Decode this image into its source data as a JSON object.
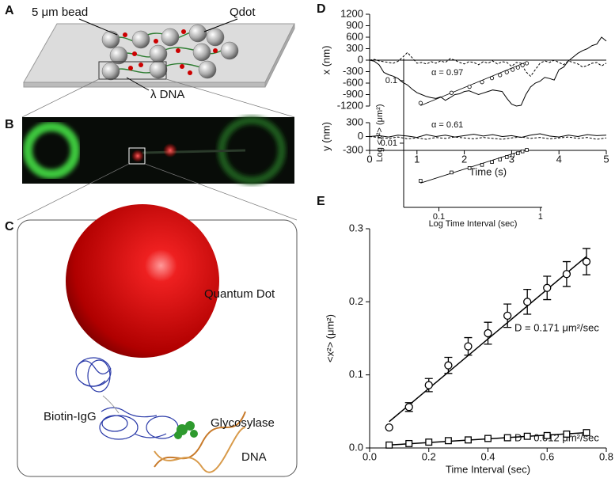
{
  "panels": [
    "A",
    "B",
    "C",
    "D",
    "E"
  ],
  "schematic_a": {
    "bead": "5 μm bead",
    "qdot": "Qdot",
    "dna": "λ DNA"
  },
  "schematic_c": {
    "quantum_dot": "Quantum Dot",
    "igg": "Biotin-IgG",
    "glycosylase": "Glycosylase",
    "dna": "DNA"
  },
  "chart_data": [
    {
      "type": "line",
      "ylabel": "x (nm)",
      "xaxis_at_zero": true,
      "x": [
        0,
        0.1,
        0.2,
        0.3,
        0.4,
        0.5,
        0.6,
        0.7,
        0.8,
        0.9,
        1,
        1.1,
        1.2,
        1.3,
        1.4,
        1.5,
        1.6,
        1.7,
        1.8,
        1.9,
        2,
        2.1,
        2.2,
        2.3,
        2.4,
        2.5,
        2.6,
        2.7,
        2.8,
        2.9,
        3,
        3.1,
        3.2,
        3.3,
        3.4,
        3.5,
        3.6,
        3.7,
        3.8,
        3.9,
        4,
        4.1,
        4.2,
        4.3,
        4.4,
        4.5,
        4.6,
        4.7,
        4.8,
        4.9,
        5
      ],
      "xlim": [
        0,
        5
      ],
      "ylim": [
        -1200,
        1200
      ],
      "yticks": [
        -1200,
        -900,
        -600,
        -300,
        0,
        300,
        600,
        900,
        1200
      ],
      "series": [
        {
          "color": "#000000",
          "dash": false,
          "values": [
            0,
            -30,
            -120,
            -320,
            -380,
            -420,
            -480,
            -580,
            -650,
            -760,
            -850,
            -900,
            -950,
            -980,
            -1000,
            -960,
            -1050,
            -980,
            -900,
            -880,
            -820,
            -800,
            -850,
            -900,
            -860,
            -820,
            -780,
            -800,
            -820,
            -1000,
            -1150,
            -1200,
            -1180,
            -900,
            -700,
            -600,
            -550,
            -450,
            -480,
            -520,
            -250,
            -180,
            -20,
            80,
            180,
            250,
            300,
            380,
            420,
            600,
            500
          ]
        },
        {
          "color": "#000000",
          "dash": true,
          "values": [
            0,
            20,
            -20,
            -40,
            -60,
            -80,
            -30,
            80,
            200,
            60,
            -80,
            -60,
            -100,
            -40,
            -80,
            -20,
            -60,
            40,
            0,
            -60,
            -100,
            -40,
            -60,
            -120,
            -40,
            -80,
            -20,
            -100,
            -40,
            -60,
            -160,
            -60,
            -80,
            -300,
            -420,
            -250,
            -80,
            -20,
            -60,
            0,
            -60,
            -120,
            -20,
            -60,
            -100,
            -180,
            -140,
            -80,
            -60,
            -150,
            -80
          ]
        }
      ]
    },
    {
      "type": "line",
      "ylabel": "y (nm)",
      "xlabel": "Time (s)",
      "x": [
        0,
        0.2,
        0.4,
        0.6,
        0.8,
        1,
        1.2,
        1.4,
        1.6,
        1.8,
        2,
        2.2,
        2.4,
        2.6,
        2.8,
        3,
        3.2,
        3.4,
        3.6,
        3.8,
        4,
        4.2,
        4.4,
        4.6,
        4.8,
        5
      ],
      "xlim": [
        0,
        5
      ],
      "ylim": [
        -300,
        300
      ],
      "xticks": [
        0,
        1,
        2,
        3,
        4,
        5
      ],
      "yticks": [
        -300,
        0,
        300
      ],
      "series": [
        {
          "color": "#000000",
          "dash": false,
          "values": [
            0,
            20,
            -10,
            30,
            10,
            -20,
            40,
            0,
            30,
            -10,
            20,
            50,
            10,
            40,
            0,
            20,
            -20,
            30,
            60,
            10,
            -10,
            30,
            0,
            40,
            20,
            30
          ]
        },
        {
          "color": "#000000",
          "dash": true,
          "values": [
            0,
            -20,
            -40,
            -10,
            -50,
            -30,
            -60,
            -20,
            -40,
            -10,
            -30,
            -50,
            -20,
            -40,
            -60,
            -30,
            -10,
            -40,
            -20,
            -50,
            -30,
            -10,
            -40,
            -20,
            -60,
            -30
          ]
        }
      ]
    },
    {
      "type": "scatter",
      "xlabel": "Time Interval (sec)",
      "ylabel": "<x²> (μm²)",
      "xlim": [
        0,
        0.8
      ],
      "ylim": [
        0,
        0.3
      ],
      "xticks": [
        {
          "value": 0,
          "label": "0.0"
        },
        0.2,
        0.4,
        0.6,
        0.8
      ],
      "yticks": [
        {
          "value": 0,
          "label": "0.0"
        },
        0.1,
        0.2,
        0.3
      ],
      "annotations": [
        "D = 0.171 μm²/sec",
        "D = 0.012 μm²/sec"
      ],
      "series": [
        {
          "marker": "circle",
          "color": "#000000",
          "x": [
            0.066,
            0.133,
            0.2,
            0.266,
            0.333,
            0.4,
            0.466,
            0.533,
            0.6,
            0.666,
            0.733
          ],
          "values": [
            0.028,
            0.056,
            0.086,
            0.113,
            0.139,
            0.157,
            0.181,
            0.2,
            0.219,
            0.238,
            0.255
          ],
          "errors": [
            0,
            0.006,
            0.009,
            0.011,
            0.012,
            0.015,
            0.016,
            0.017,
            0.016,
            0.017,
            0.018
          ]
        },
        {
          "marker": "square",
          "color": "#000000",
          "x": [
            0.066,
            0.133,
            0.2,
            0.266,
            0.333,
            0.4,
            0.466,
            0.533,
            0.6,
            0.666,
            0.733
          ],
          "values": [
            0.004,
            0.006,
            0.008,
            0.01,
            0.011,
            0.013,
            0.014,
            0.016,
            0.017,
            0.019,
            0.021
          ]
        }
      ],
      "fits": [
        {
          "x": [
            0.066,
            0.733
          ],
          "values": [
            0.036,
            0.262
          ]
        },
        {
          "x": [
            0.066,
            0.733
          ],
          "values": [
            0.004,
            0.021
          ]
        }
      ]
    },
    {
      "type": "scatter",
      "log": true,
      "xlabel": "Log Time Interval (sec)",
      "ylabel": "Log <x²> (μm²)",
      "xlim": [
        0.045,
        1.04
      ],
      "ylim": [
        0.00094,
        0.226
      ],
      "xticks": [
        0.1,
        1
      ],
      "yticks": [
        0.01,
        0.1
      ],
      "annotations": [
        "α = 0.97",
        "α = 0.61"
      ],
      "series": [
        {
          "marker": "circle",
          "color": "#000000",
          "x": [
            0.066,
            0.133,
            0.2,
            0.266,
            0.333,
            0.4,
            0.466,
            0.533,
            0.6,
            0.666,
            0.733
          ],
          "values": [
            0.044,
            0.064,
            0.08,
            0.095,
            0.11,
            0.123,
            0.137,
            0.15,
            0.163,
            0.177,
            0.19
          ]
        },
        {
          "marker": "square",
          "color": "#000000",
          "x": [
            0.066,
            0.133,
            0.2,
            0.266,
            0.333,
            0.4,
            0.466,
            0.533,
            0.6,
            0.666,
            0.733
          ],
          "values": [
            0.0025,
            0.0034,
            0.004,
            0.0045,
            0.005,
            0.0055,
            0.006,
            0.0064,
            0.0069,
            0.0074,
            0.0078
          ]
        }
      ],
      "fits": [
        {
          "x": [
            0.066,
            0.733
          ],
          "values": [
            0.04,
            0.2
          ]
        },
        {
          "x": [
            0.066,
            0.733
          ],
          "values": [
            0.0023,
            0.008
          ]
        }
      ]
    }
  ]
}
